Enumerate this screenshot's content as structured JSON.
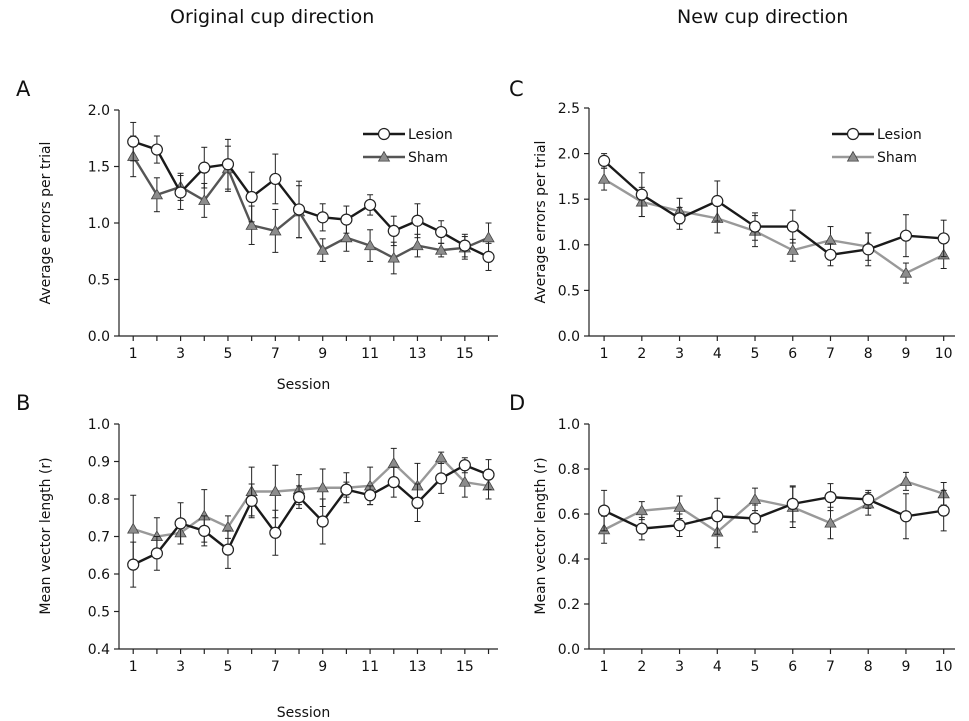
{
  "headings": {
    "left": "Original cup direction",
    "right": "New cup direction"
  },
  "colors": {
    "lesion_line": "#1a1a1a",
    "sham_line_dark": "#555555",
    "sham_line_light": "#999999",
    "sham_marker": "#8c8c8c"
  },
  "chart_data": [
    {
      "panel": "A",
      "type": "line",
      "xlabel": "Session",
      "ylabel": "Average errors per trial",
      "xlim": [
        1,
        16
      ],
      "ylim": [
        0,
        2.0
      ],
      "yticks": [
        "0.0",
        "0.5",
        "1.0",
        "1.5",
        "2.0"
      ],
      "xticks": [
        "1",
        "3",
        "5",
        "7",
        "9",
        "11",
        "13",
        "15"
      ],
      "legend": "top-right",
      "x": [
        1,
        2,
        3,
        4,
        5,
        6,
        7,
        8,
        9,
        10,
        11,
        12,
        13,
        14,
        15,
        16
      ],
      "series": [
        {
          "name": "Lesion",
          "marker": "circle",
          "values": [
            1.72,
            1.65,
            1.27,
            1.49,
            1.52,
            1.23,
            1.39,
            1.12,
            1.05,
            1.03,
            1.16,
            0.93,
            1.02,
            0.92,
            0.8,
            0.7
          ],
          "error": [
            0.17,
            0.12,
            0.15,
            0.18,
            0.22,
            0.22,
            0.22,
            0.25,
            0.12,
            0.12,
            0.09,
            0.13,
            0.15,
            0.1,
            0.1,
            0.12
          ]
        },
        {
          "name": "Sham",
          "marker": "triangle",
          "values": [
            1.59,
            1.25,
            1.32,
            1.2,
            1.48,
            0.98,
            0.93,
            1.1,
            0.76,
            0.87,
            0.8,
            0.69,
            0.8,
            0.76,
            0.78,
            0.87
          ],
          "error": [
            0.18,
            0.15,
            0.12,
            0.15,
            0.2,
            0.17,
            0.19,
            0.23,
            0.1,
            0.12,
            0.14,
            0.14,
            0.1,
            0.06,
            0.1,
            0.13
          ]
        }
      ]
    },
    {
      "panel": "B",
      "type": "line",
      "xlabel": "Session",
      "ylabel": "Mean vector length (r)",
      "xlim": [
        1,
        16
      ],
      "ylim": [
        0.4,
        1.0
      ],
      "yticks": [
        "0.4",
        "0.5",
        "0.6",
        "0.7",
        "0.8",
        "0.9",
        "1.0"
      ],
      "xticks": [
        "1",
        "3",
        "5",
        "7",
        "9",
        "11",
        "13",
        "15"
      ],
      "x": [
        1,
        2,
        3,
        4,
        5,
        6,
        7,
        8,
        9,
        10,
        11,
        12,
        13,
        14,
        15,
        16
      ],
      "series": [
        {
          "name": "Lesion",
          "marker": "circle",
          "values": [
            0.625,
            0.655,
            0.735,
            0.715,
            0.665,
            0.795,
            0.71,
            0.805,
            0.74,
            0.825,
            0.81,
            0.845,
            0.79,
            0.855,
            0.89,
            0.865
          ],
          "error": [
            0.06,
            0.045,
            0.055,
            0.04,
            0.05,
            0.045,
            0.06,
            0.03,
            0.06,
            0.02,
            0.025,
            0.04,
            0.05,
            0.04,
            0.02,
            0.04
          ]
        },
        {
          "name": "Sham",
          "marker": "triangle",
          "values": [
            0.72,
            0.7,
            0.71,
            0.755,
            0.725,
            0.82,
            0.82,
            0.825,
            0.83,
            0.83,
            0.835,
            0.895,
            0.835,
            0.91,
            0.845,
            0.835
          ],
          "error": [
            0.09,
            0.05,
            0.03,
            0.07,
            0.03,
            0.065,
            0.07,
            0.04,
            0.05,
            0.04,
            0.05,
            0.04,
            0.06,
            0.015,
            0.04,
            0.035
          ]
        }
      ]
    },
    {
      "panel": "C",
      "type": "line",
      "ylabel": "Average errors per trial",
      "xlim": [
        1,
        10
      ],
      "ylim": [
        0,
        2.5
      ],
      "yticks": [
        "0.0",
        "0.5",
        "1.0",
        "1.5",
        "2.0",
        "2.5"
      ],
      "xticks": [
        "1",
        "2",
        "3",
        "4",
        "5",
        "6",
        "7",
        "8",
        "9",
        "10"
      ],
      "legend": "top-right",
      "x": [
        1,
        2,
        3,
        4,
        5,
        6,
        7,
        8,
        9,
        10
      ],
      "series": [
        {
          "name": "Lesion",
          "marker": "circle",
          "values": [
            1.92,
            1.55,
            1.29,
            1.48,
            1.2,
            1.2,
            0.89,
            0.95,
            1.1,
            1.07
          ],
          "error": [
            0.08,
            0.24,
            0.12,
            0.22,
            0.15,
            0.18,
            0.12,
            0.18,
            0.23,
            0.2
          ]
        },
        {
          "name": "Sham",
          "marker": "triangle",
          "values": [
            1.72,
            1.47,
            1.37,
            1.29,
            1.15,
            0.94,
            1.05,
            0.98,
            0.69,
            0.89
          ],
          "error": [
            0.12,
            0.16,
            0.14,
            0.16,
            0.17,
            0.12,
            0.15,
            0.15,
            0.11,
            0.15
          ]
        }
      ]
    },
    {
      "panel": "D",
      "type": "line",
      "ylabel": "Mean vector length (r)",
      "xlim": [
        1,
        10
      ],
      "ylim": [
        0,
        1.0
      ],
      "yticks": [
        "0.0",
        "0.2",
        "0.4",
        "0.6",
        "0.8",
        "1.0"
      ],
      "xticks": [
        "1",
        "2",
        "3",
        "4",
        "5",
        "6",
        "7",
        "8",
        "9",
        "10"
      ],
      "x": [
        1,
        2,
        3,
        4,
        5,
        6,
        7,
        8,
        9,
        10
      ],
      "series": [
        {
          "name": "Lesion",
          "marker": "circle",
          "values": [
            0.615,
            0.535,
            0.55,
            0.59,
            0.58,
            0.645,
            0.675,
            0.665,
            0.59,
            0.615
          ],
          "error": [
            0.09,
            0.05,
            0.05,
            0.08,
            0.06,
            0.08,
            0.06,
            0.04,
            0.1,
            0.09
          ]
        },
        {
          "name": "Sham",
          "marker": "triangle",
          "values": [
            0.53,
            0.615,
            0.63,
            0.52,
            0.665,
            0.63,
            0.56,
            0.645,
            0.745,
            0.69
          ],
          "error": [
            0.06,
            0.04,
            0.05,
            0.07,
            0.05,
            0.09,
            0.07,
            0.05,
            0.04,
            0.05
          ]
        }
      ]
    }
  ]
}
